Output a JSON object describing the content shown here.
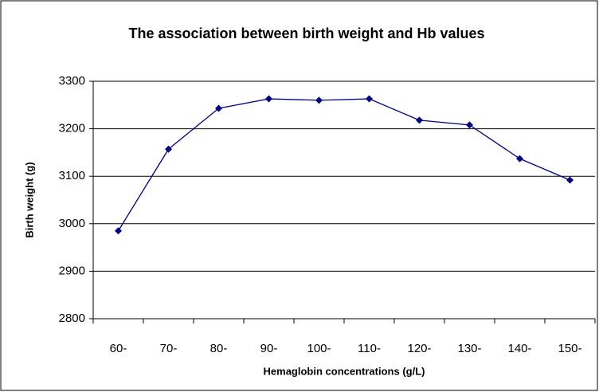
{
  "chart_data": {
    "type": "line",
    "title": "The association between birth weight and Hb values",
    "xlabel": "Hemaglobin concentrations (g/L)",
    "ylabel": "Birth weight (g)",
    "categories": [
      "60-",
      "70-",
      "80-",
      "90-",
      "100-",
      "110-",
      "120-",
      "130-",
      "140-",
      "150-"
    ],
    "series": [
      {
        "color": "#000080",
        "values": [
          2985,
          3157,
          3243,
          3263,
          3260,
          3263,
          3218,
          3208,
          3137,
          3092
        ]
      }
    ],
    "ylim": [
      2800,
      3300
    ],
    "yticks": [
      2800,
      2900,
      3000,
      3100,
      3200,
      3300
    ],
    "grid": true
  }
}
